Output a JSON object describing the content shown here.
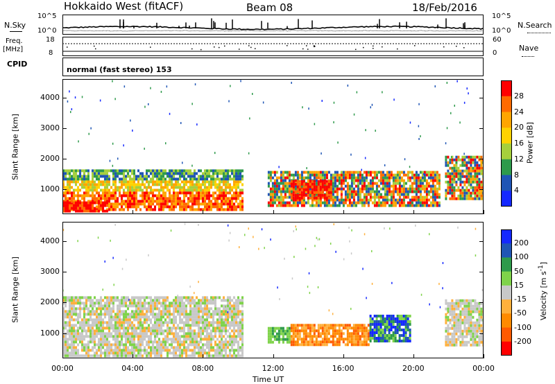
{
  "header": {
    "radar": "Hokkaido West (fitACF)",
    "beam": "Beam 08",
    "date": "18/Feb/2016"
  },
  "noise_panel": {
    "left_label": "N.Sky",
    "right_label": "N.Search",
    "left_ticks": [
      "10^5",
      "10^0"
    ],
    "right_ticks": [
      "10^5",
      "10^0"
    ]
  },
  "freq_panel": {
    "left_label_1": "Freq.",
    "left_label_2": "[MHz]",
    "right_label": "Nave",
    "left_ticks": [
      "18",
      "8"
    ],
    "right_ticks": [
      "60",
      "0"
    ]
  },
  "cpid": {
    "label": "CPID",
    "text": "normal (fast stereo) 153"
  },
  "chart_data": [
    {
      "type": "heatmap",
      "name": "power",
      "ylabel": "Slant Range [km]",
      "yticks": [
        "4000",
        "3000",
        "2000",
        "1000"
      ],
      "ylim": [
        180,
        4620
      ],
      "x": [
        "00:00",
        "04:00",
        "08:00",
        "12:00",
        "16:00",
        "20:00",
        "00:00"
      ],
      "colorbar": {
        "label": "Power [dB]",
        "ticks": [
          "28",
          "24",
          "20",
          "16",
          "12",
          "8",
          "4"
        ],
        "colors": [
          "#ff0000",
          "#ff6a00",
          "#ffa500",
          "#ffd200",
          "#a6cf3c",
          "#2e9a4b",
          "#1f55b5",
          "#1428ff"
        ]
      },
      "regions": [
        {
          "t0": 0.0,
          "t1": 10.3,
          "r0": 300,
          "r1": 1650,
          "level": "mixed-low"
        },
        {
          "t0": 0.0,
          "t1": 2.6,
          "r0": 250,
          "r1": 600,
          "level": "high"
        },
        {
          "t0": 11.7,
          "t1": 21.5,
          "r0": 500,
          "r1": 1600,
          "level": "mixed-mid"
        },
        {
          "t0": 13.0,
          "t1": 15.3,
          "r0": 700,
          "r1": 1300,
          "level": "high"
        },
        {
          "t0": 21.8,
          "t1": 24.0,
          "r0": 650,
          "r1": 2100,
          "level": "mixed-mid"
        }
      ]
    },
    {
      "type": "heatmap",
      "name": "velocity",
      "ylabel": "Slant Range [km]",
      "xlabel": "Time UT",
      "yticks": [
        "4000",
        "3000",
        "2000",
        "1000"
      ],
      "ylim": [
        180,
        4620
      ],
      "x": [
        "00:00",
        "04:00",
        "08:00",
        "12:00",
        "16:00",
        "20:00",
        "00:00"
      ],
      "colorbar": {
        "label": "Velocity [m s^-1]",
        "ticks": [
          "200",
          "100",
          "50",
          "15",
          "-15",
          "-50",
          "-100",
          "-200"
        ],
        "colors": [
          "#1428ff",
          "#1f55b5",
          "#2e9a4b",
          "#7fd34a",
          "#c8c8c8",
          "#ffb03c",
          "#ff8a00",
          "#ff5a00",
          "#ff0000"
        ]
      },
      "regions": [
        {
          "t0": 0.0,
          "t1": 10.3,
          "r0": 300,
          "r1": 2200,
          "level": "near-zero"
        },
        {
          "t0": 11.7,
          "t1": 13.0,
          "r0": 700,
          "r1": 1200,
          "level": "+15..+50"
        },
        {
          "t0": 13.0,
          "t1": 17.5,
          "r0": 600,
          "r1": 1300,
          "level": "-15..-100"
        },
        {
          "t0": 17.5,
          "t1": 19.8,
          "r0": 700,
          "r1": 1600,
          "level": "+50..+200"
        },
        {
          "t0": 21.8,
          "t1": 24.0,
          "r0": 650,
          "r1": 2100,
          "level": "near-zero"
        }
      ]
    }
  ],
  "xaxis": {
    "ticks": [
      "00:00",
      "04:00",
      "08:00",
      "12:00",
      "16:00",
      "20:00",
      "00:00"
    ],
    "label": "Time UT"
  }
}
